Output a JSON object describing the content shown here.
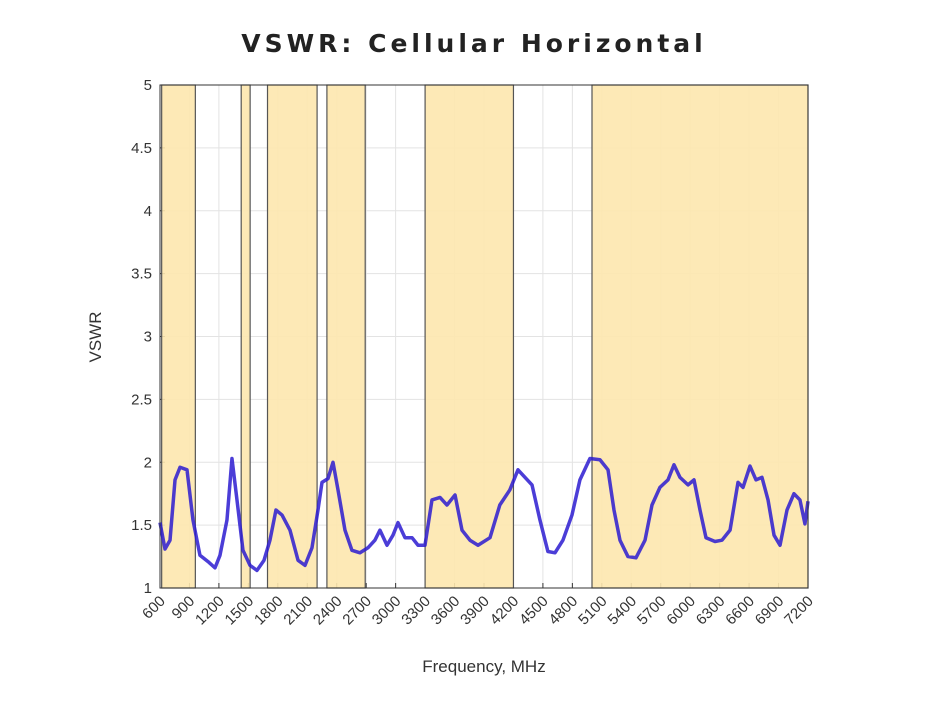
{
  "chart_data": {
    "type": "line",
    "title": "VSWR: Cellular Horizontal",
    "x_label": "Frequency, MHz",
    "y_label": "VSWR",
    "xlim": [
      600,
      7200
    ],
    "ylim": [
      1,
      5
    ],
    "xticks": [
      600,
      900,
      1200,
      1500,
      1800,
      2100,
      2400,
      2700,
      3000,
      3300,
      3600,
      3900,
      4200,
      4500,
      4800,
      5100,
      5400,
      5700,
      6000,
      6300,
      6600,
      6900,
      7200
    ],
    "yticks": [
      1,
      1.5,
      2,
      2.5,
      3,
      3.5,
      4,
      4.5,
      5
    ],
    "grid": true,
    "bands": [
      [
        617,
        960
      ],
      [
        1427,
        1518
      ],
      [
        1695,
        2200
      ],
      [
        2300,
        2690
      ],
      [
        3300,
        4200
      ],
      [
        5000,
        7200
      ]
    ],
    "band_color": "#fde7ae",
    "series": [
      {
        "name": "VSWR",
        "color": "#2b1bd0",
        "x": [
          600,
          651,
          702,
          753,
          804,
          875,
          936,
          1007,
          1089,
          1160,
          1211,
          1282,
          1333,
          1384,
          1445,
          1517,
          1588,
          1659,
          1720,
          1781,
          1843,
          1924,
          2006,
          2077,
          2148,
          2209,
          2250,
          2311,
          2362,
          2413,
          2484,
          2555,
          2637,
          2718,
          2789,
          2840,
          2912,
          2973,
          3024,
          3095,
          3167,
          3228,
          3299,
          3370,
          3452,
          3523,
          3605,
          3676,
          3757,
          3839,
          3961,
          4061,
          4163,
          4246,
          4317,
          4389,
          4470,
          4551,
          4623,
          4704,
          4796,
          4877,
          4979,
          5081,
          5163,
          5224,
          5285,
          5366,
          5448,
          5540,
          5611,
          5692,
          5774,
          5835,
          5896,
          5978,
          6039,
          6100,
          6161,
          6253,
          6324,
          6406,
          6487,
          6538,
          6609,
          6670,
          6731,
          6793,
          6854,
          6915,
          6986,
          7057,
          7118,
          7169,
          7200
        ],
        "values": [
          1.52,
          1.31,
          1.38,
          1.86,
          1.96,
          1.94,
          1.54,
          1.26,
          1.21,
          1.16,
          1.26,
          1.54,
          2.03,
          1.7,
          1.3,
          1.18,
          1.14,
          1.22,
          1.38,
          1.62,
          1.58,
          1.46,
          1.22,
          1.18,
          1.32,
          1.62,
          1.84,
          1.87,
          2.0,
          1.78,
          1.46,
          1.3,
          1.28,
          1.32,
          1.38,
          1.46,
          1.34,
          1.42,
          1.52,
          1.4,
          1.4,
          1.34,
          1.34,
          1.7,
          1.72,
          1.66,
          1.74,
          1.46,
          1.38,
          1.34,
          1.4,
          1.66,
          1.78,
          1.94,
          1.88,
          1.82,
          1.54,
          1.29,
          1.28,
          1.38,
          1.58,
          1.86,
          2.03,
          2.02,
          1.94,
          1.62,
          1.38,
          1.25,
          1.24,
          1.38,
          1.66,
          1.8,
          1.86,
          1.98,
          1.88,
          1.82,
          1.86,
          1.62,
          1.4,
          1.37,
          1.38,
          1.46,
          1.84,
          1.8,
          1.97,
          1.86,
          1.88,
          1.7,
          1.42,
          1.34,
          1.62,
          1.75,
          1.7,
          1.51,
          1.69
        ]
      }
    ]
  }
}
